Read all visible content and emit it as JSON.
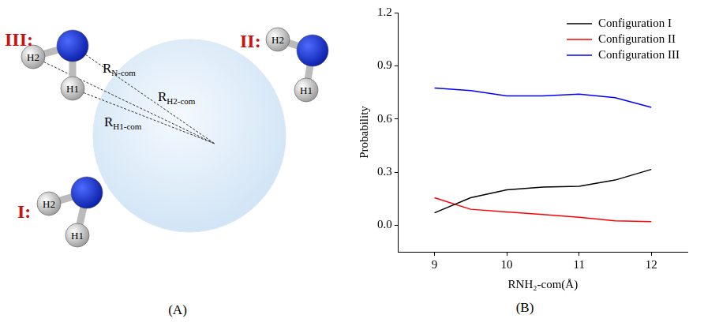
{
  "diagram": {
    "label": "(A)",
    "configurations": [
      {
        "label": "III:",
        "atoms": [
          "H2",
          "H1"
        ]
      },
      {
        "label": "II:",
        "atoms": [
          "H2",
          "H1"
        ]
      },
      {
        "label": "I:",
        "atoms": [
          "H2",
          "H1"
        ]
      }
    ],
    "distances": [
      {
        "main": "R",
        "sub": "N-com"
      },
      {
        "main": "R",
        "sub": "H2-com"
      },
      {
        "main": "R",
        "sub": "H1-com"
      }
    ]
  },
  "chart_data": {
    "label": "(B)",
    "type": "line",
    "x_label": "RNH₂-com(Å)",
    "y_label": "Probability",
    "x": [
      9,
      9.5,
      10,
      10.5,
      11,
      11.5,
      12
    ],
    "series": [
      {
        "name": "Configuration I",
        "color": "#000000",
        "values": [
          0.07,
          0.155,
          0.2,
          0.215,
          0.22,
          0.255,
          0.315
        ]
      },
      {
        "name": "Configuration II",
        "color": "#ff0000",
        "values": [
          0.155,
          0.09,
          0.075,
          0.06,
          0.045,
          0.025,
          0.02
        ]
      },
      {
        "name": "Configuration III",
        "color": "#0000ff",
        "values": [
          0.775,
          0.76,
          0.73,
          0.73,
          0.74,
          0.72,
          0.665
        ]
      }
    ],
    "xlim": [
      8.5,
      12.5
    ],
    "xticks": [
      9,
      10,
      11,
      12
    ],
    "ylim": [
      -0.15,
      1.2
    ],
    "yticks": [
      {
        "value": 0,
        "label": "0.0"
      },
      0.3,
      0.6,
      0.9,
      1.2
    ],
    "grid": false,
    "legend": "upper right"
  }
}
